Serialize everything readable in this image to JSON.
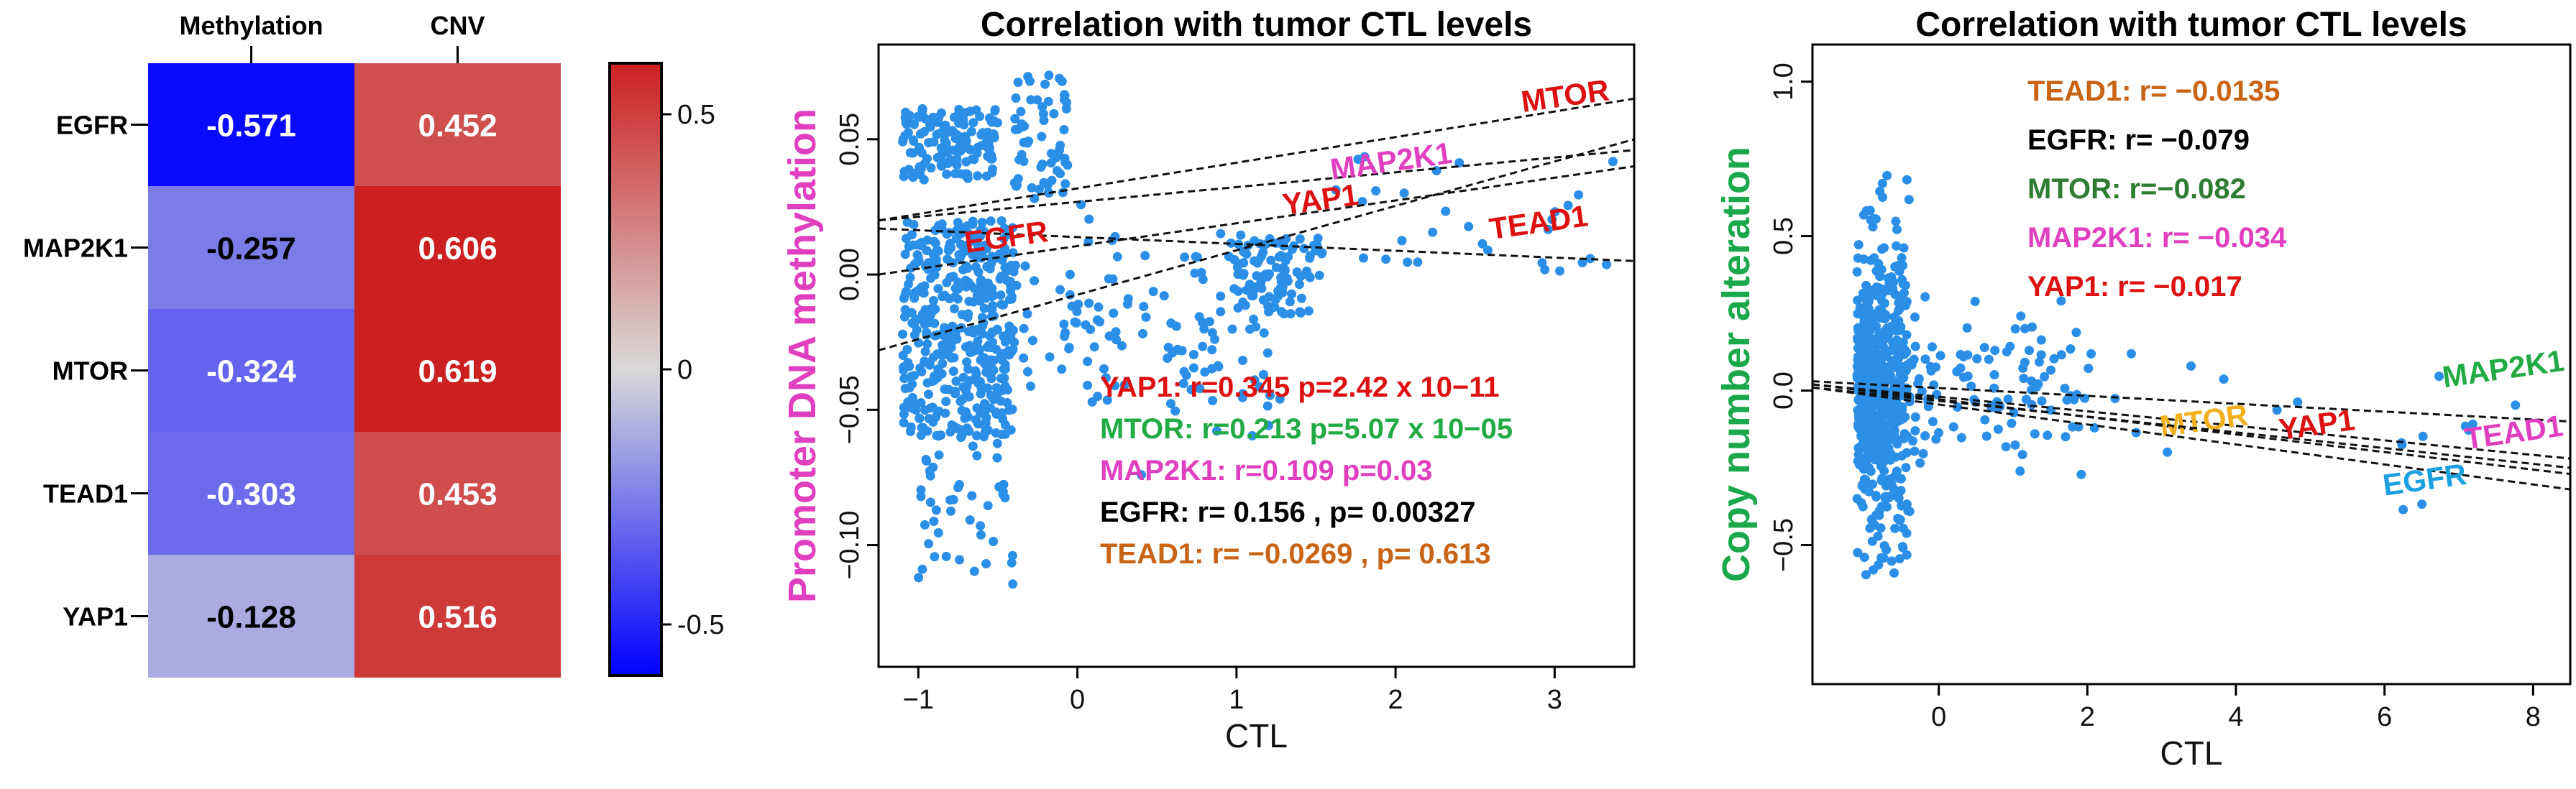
{
  "chart_data": [
    {
      "type": "heatmap",
      "title": "",
      "columns": [
        "Methylation",
        "CNV"
      ],
      "rows": [
        "EGFR",
        "MAP2K1",
        "MTOR",
        "TEAD1",
        "YAP1"
      ],
      "values": [
        [
          -0.571,
          0.452
        ],
        [
          -0.257,
          0.606
        ],
        [
          -0.324,
          0.619
        ],
        [
          -0.303,
          0.453
        ],
        [
          -0.128,
          0.516
        ]
      ],
      "labels": [
        [
          "-0.571",
          "0.452"
        ],
        [
          "-0.257",
          "0.606"
        ],
        [
          "-0.324",
          "0.619"
        ],
        [
          "-0.303",
          "0.453"
        ],
        [
          "-0.128",
          "0.516"
        ]
      ],
      "colorscale": {
        "min": -0.6,
        "max": 0.6,
        "low": "#0000ff",
        "mid": "#d9d9d9",
        "high": "#cc2020"
      },
      "colorbar_ticks": [
        0.5,
        0,
        -0.5
      ],
      "colorbar_tick_labels": [
        "0.5",
        "0",
        "-0.5"
      ]
    },
    {
      "type": "scatter",
      "title": "Correlation with tumor CTL levels",
      "xlabel": "CTL",
      "ylabel": "Promoter DNA methylation",
      "ylabel_color": "#e040c0",
      "xlim": [
        -1.25,
        3.5
      ],
      "ylim": [
        -0.145,
        0.085
      ],
      "xticks": [
        -1,
        0,
        1,
        2,
        3
      ],
      "xtick_labels": [
        "−1",
        "0",
        "1",
        "2",
        "3"
      ],
      "yticks": [
        -0.1,
        -0.05,
        0.0,
        0.05
      ],
      "ytick_labels": [
        "−0.10",
        "−0.05",
        "0.00",
        "0.05"
      ],
      "point_color": "#2b8fe8",
      "fit_lines": [
        {
          "name": "MTOR",
          "x": [
            -1.25,
            3.5
          ],
          "y": [
            0.02,
            0.065
          ],
          "color": "#dd1111",
          "label_at": [
            2.8,
            0.06
          ]
        },
        {
          "name": "MAP2K1",
          "x": [
            -1.25,
            3.5
          ],
          "y": [
            0.02,
            0.046
          ],
          "color": "#e040c0",
          "label_at": [
            1.6,
            0.035
          ]
        },
        {
          "name": "YAP1",
          "x": [
            -1.25,
            3.5
          ],
          "y": [
            -0.028,
            0.05
          ],
          "color": "#dd1111",
          "label_at": [
            1.3,
            0.022
          ]
        },
        {
          "name": "TEAD1",
          "x": [
            -1.25,
            3.5
          ],
          "y": [
            0.017,
            0.005
          ],
          "color": "#dd1111",
          "label_at": [
            2.6,
            0.013
          ]
        },
        {
          "name": "EGFR",
          "x": [
            -1.25,
            3.5
          ],
          "y": [
            0.0,
            0.04
          ],
          "color": "#dd1111",
          "label_at": [
            -0.7,
            0.008
          ]
        }
      ],
      "annotations": [
        {
          "text": "YAP1: r=0.345 p=2.42 x 10−11",
          "color": "#dd1111"
        },
        {
          "text": "MTOR: r=0.213 p=5.07 x 10−05",
          "color": "#22aa44"
        },
        {
          "text": "MAP2K1: r=0.109 p=0.03",
          "color": "#e040c0"
        },
        {
          "text": "EGFR: r= 0.156 , p= 0.00327",
          "color": "#000000"
        },
        {
          "text": "TEAD1: r= −0.0269 , p= 0.613",
          "color": "#c86414"
        }
      ]
    },
    {
      "type": "scatter",
      "title": "Correlation with tumor CTL levels",
      "xlabel": "CTL",
      "ylabel": "Copy number alteration",
      "ylabel_color": "#1aa84a",
      "xlim": [
        -1.7,
        8.5
      ],
      "ylim": [
        -0.95,
        1.12
      ],
      "xticks": [
        0,
        2,
        4,
        6,
        8
      ],
      "xtick_labels": [
        "0",
        "2",
        "4",
        "6",
        "8"
      ],
      "yticks": [
        -0.5,
        0.0,
        0.5,
        1.0
      ],
      "ytick_labels": [
        "−0.5",
        "0.0",
        "0.5",
        "1.0"
      ],
      "point_color": "#2b8fe8",
      "fit_lines": [
        {
          "name": "MAP2K1",
          "x": [
            -1.7,
            8.5
          ],
          "y": [
            0.03,
            -0.1
          ],
          "color": "#22aa44",
          "label_at": [
            6.8,
            0.01
          ]
        },
        {
          "name": "TEAD1",
          "x": [
            -1.7,
            8.5
          ],
          "y": [
            0.02,
            -0.22
          ],
          "color": "#e040c0",
          "label_at": [
            7.1,
            -0.19
          ]
        },
        {
          "name": "MTOR",
          "x": [
            -1.7,
            8.5
          ],
          "y": [
            0.02,
            -0.27
          ],
          "color": "#f2b01e",
          "label_at": [
            3.0,
            -0.15
          ]
        },
        {
          "name": "YAP1",
          "x": [
            -1.7,
            8.5
          ],
          "y": [
            0.01,
            -0.25
          ],
          "color": "#dd1111",
          "label_at": [
            4.6,
            -0.16
          ]
        },
        {
          "name": "EGFR",
          "x": [
            -1.7,
            8.5
          ],
          "y": [
            0.01,
            -0.32
          ],
          "color": "#1aa0e0",
          "label_at": [
            6.0,
            -0.34
          ]
        }
      ],
      "annotations": [
        {
          "text": "TEAD1:  r= −0.0135",
          "color": "#c86414"
        },
        {
          "text": "EGFR:    r= −0.079",
          "color": "#000000"
        },
        {
          "text": "MTOR:  r=−0.082",
          "color": "#2e7d32"
        },
        {
          "text": "MAP2K1: r= −0.034",
          "color": "#e040c0"
        },
        {
          "text": "YAP1:        r= −0.017",
          "color": "#dd1111"
        }
      ]
    }
  ]
}
